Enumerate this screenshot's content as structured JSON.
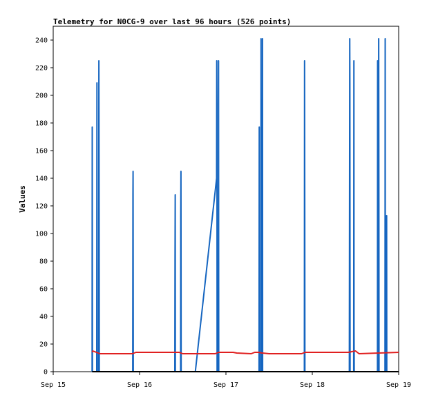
{
  "chart_data": {
    "type": "line",
    "title": "Telemetry for N0CG-9 over last 96 hours (526 points)",
    "xlabel": "",
    "ylabel": "Values",
    "x_tick_labels": [
      "Sep 15",
      "Sep 16",
      "Sep 17",
      "Sep 18",
      "Sep 19"
    ],
    "x_unit": "hours since Sep 15 00:00",
    "xlim": [
      0,
      96
    ],
    "ylim": [
      0,
      250
    ],
    "y_ticks": [
      0,
      20,
      40,
      60,
      80,
      100,
      120,
      140,
      160,
      180,
      200,
      220,
      240
    ],
    "grid": false,
    "series": [
      {
        "color": "#1565c0",
        "points": [
          [
            10.8,
            0
          ],
          [
            10.85,
            177
          ],
          [
            10.9,
            0
          ],
          [
            12.1,
            0
          ],
          [
            12.15,
            209
          ],
          [
            12.2,
            0
          ],
          [
            12.6,
            0
          ],
          [
            12.65,
            128
          ],
          [
            12.7,
            225
          ],
          [
            12.75,
            145
          ],
          [
            12.8,
            0
          ],
          [
            22.1,
            0
          ],
          [
            22.15,
            128
          ],
          [
            22.2,
            145
          ],
          [
            22.25,
            0
          ],
          [
            33.8,
            0
          ],
          [
            33.85,
            80
          ],
          [
            33.9,
            128
          ],
          [
            33.95,
            0
          ],
          [
            35.4,
            0
          ],
          [
            35.45,
            113
          ],
          [
            35.5,
            145
          ],
          [
            35.55,
            0
          ],
          [
            39.5,
            0
          ],
          [
            45.4,
            140
          ],
          [
            45.45,
            225
          ],
          [
            45.5,
            193
          ],
          [
            45.55,
            0
          ],
          [
            45.9,
            0
          ],
          [
            45.95,
            225
          ],
          [
            46.0,
            0
          ],
          [
            57.2,
            0
          ],
          [
            57.25,
            177
          ],
          [
            57.3,
            0
          ],
          [
            57.7,
            0
          ],
          [
            57.75,
            241
          ],
          [
            57.8,
            0
          ],
          [
            58.1,
            0
          ],
          [
            58.15,
            241
          ],
          [
            58.2,
            0
          ],
          [
            69.8,
            0
          ],
          [
            69.85,
            225
          ],
          [
            69.9,
            113
          ],
          [
            69.95,
            0
          ],
          [
            82.3,
            0
          ],
          [
            82.35,
            121
          ],
          [
            82.4,
            241
          ],
          [
            82.45,
            209
          ],
          [
            82.5,
            0
          ],
          [
            83.5,
            0
          ],
          [
            83.55,
            225
          ],
          [
            83.6,
            33
          ],
          [
            83.65,
            0
          ],
          [
            90.1,
            0
          ],
          [
            90.15,
            225
          ],
          [
            90.2,
            0
          ],
          [
            90.4,
            0
          ],
          [
            90.45,
            241
          ],
          [
            90.5,
            121
          ],
          [
            90.55,
            0
          ],
          [
            92.2,
            0
          ],
          [
            92.25,
            241
          ],
          [
            92.3,
            0
          ],
          [
            92.6,
            0
          ],
          [
            92.65,
            113
          ],
          [
            92.7,
            0
          ]
        ]
      },
      {
        "color": "#e02020",
        "points": [
          [
            10.8,
            14
          ],
          [
            11.0,
            15
          ],
          [
            12.0,
            14
          ],
          [
            13.0,
            13
          ],
          [
            22.0,
            13
          ],
          [
            23.0,
            14
          ],
          [
            34.0,
            14
          ],
          [
            35.0,
            14
          ],
          [
            36.0,
            13
          ],
          [
            45.0,
            13
          ],
          [
            46.0,
            14
          ],
          [
            50.0,
            14
          ],
          [
            51.0,
            13.5
          ],
          [
            55.0,
            13
          ],
          [
            56.0,
            14
          ],
          [
            57.0,
            14
          ],
          [
            58.0,
            13.5
          ],
          [
            60.0,
            13
          ],
          [
            69.0,
            13
          ],
          [
            70.0,
            14
          ],
          [
            82.0,
            14
          ],
          [
            84.0,
            15
          ],
          [
            85.0,
            13
          ],
          [
            96.0,
            14
          ]
        ]
      },
      {
        "color": "#000000",
        "points": [
          [
            10.8,
            0
          ],
          [
            96,
            0
          ]
        ]
      }
    ]
  }
}
